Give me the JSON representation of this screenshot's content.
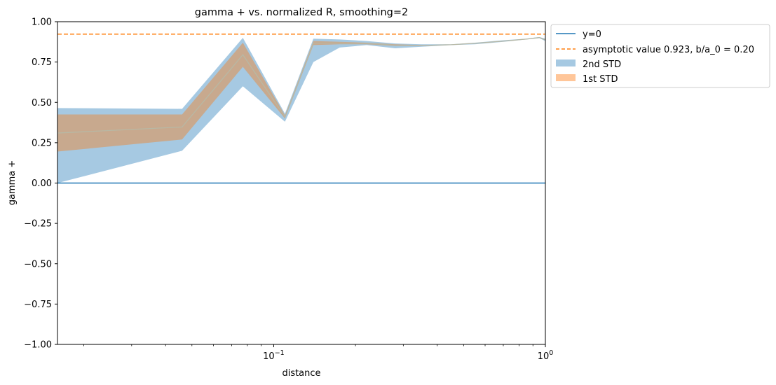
{
  "chart_data": {
    "type": "area",
    "title": "gamma + vs. normalized R, smoothing=2",
    "xlabel": "distance",
    "ylabel": "gamma +",
    "xscale": "log",
    "xlim": [
      0.016,
      1.0
    ],
    "ylim": [
      -1.0,
      1.0
    ],
    "yticks": [
      -1.0,
      -0.75,
      -0.5,
      -0.25,
      0.0,
      0.25,
      0.5,
      0.75,
      1.0
    ],
    "ytick_labels": [
      "−1.00",
      "−0.75",
      "−0.50",
      "−0.25",
      "0.00",
      "0.25",
      "0.50",
      "0.75",
      "1.00"
    ],
    "xticks": [
      0.1,
      1.0
    ],
    "xtick_base": "10",
    "xtick_exponents": [
      "−1",
      "0"
    ],
    "grid": false,
    "legend_position": "outside-top-right",
    "colors": {
      "y0_line": "#1f77b4",
      "asymptote": "#ff7f0e",
      "std2_fill": "#a6c9e2",
      "std1_fill": "#c8a98e",
      "std1_legend": "#ffc699",
      "mean_line": "#b8b8a4"
    },
    "legend": [
      {
        "label": "y=0",
        "kind": "line"
      },
      {
        "label": "asymptotic value 0.923, b/a_0 = 0.20",
        "kind": "dashed"
      },
      {
        "label": "2nd STD",
        "kind": "patch"
      },
      {
        "label": "1st STD",
        "kind": "patch"
      }
    ],
    "series": [
      {
        "name": "y=0",
        "x": [
          0.016,
          1.0
        ],
        "y": [
          0.0,
          0.0
        ]
      },
      {
        "name": "asymptotic value 0.923, b/a_0 = 0.20",
        "x": [
          0.016,
          1.0
        ],
        "y": [
          0.923,
          0.923
        ]
      },
      {
        "name": "2nd STD",
        "x": [
          0.016,
          0.046,
          0.077,
          0.11,
          0.14,
          0.175,
          0.22,
          0.28,
          0.35,
          0.45,
          0.55,
          0.7,
          0.85,
          0.95,
          1.0
        ],
        "lower": [
          0.0,
          0.2,
          0.6,
          0.38,
          0.75,
          0.84,
          0.855,
          0.835,
          0.845,
          0.855,
          0.86,
          0.875,
          0.89,
          0.898,
          0.88
        ],
        "upper": [
          0.465,
          0.46,
          0.9,
          0.43,
          0.895,
          0.89,
          0.88,
          0.865,
          0.86,
          0.86,
          0.87,
          0.885,
          0.895,
          0.905,
          0.895
        ]
      },
      {
        "name": "1st STD",
        "x": [
          0.016,
          0.046,
          0.077,
          0.11,
          0.14,
          0.175,
          0.22,
          0.28,
          0.35,
          0.45,
          0.55,
          0.7,
          0.85,
          0.95,
          1.0
        ],
        "lower": [
          0.195,
          0.27,
          0.72,
          0.4,
          0.855,
          0.86,
          0.86,
          0.85,
          0.85,
          0.857,
          0.865,
          0.878,
          0.891,
          0.9,
          0.885
        ],
        "upper": [
          0.425,
          0.425,
          0.87,
          0.42,
          0.88,
          0.875,
          0.87,
          0.86,
          0.855,
          0.858,
          0.867,
          0.881,
          0.893,
          0.903,
          0.89
        ]
      }
    ]
  }
}
